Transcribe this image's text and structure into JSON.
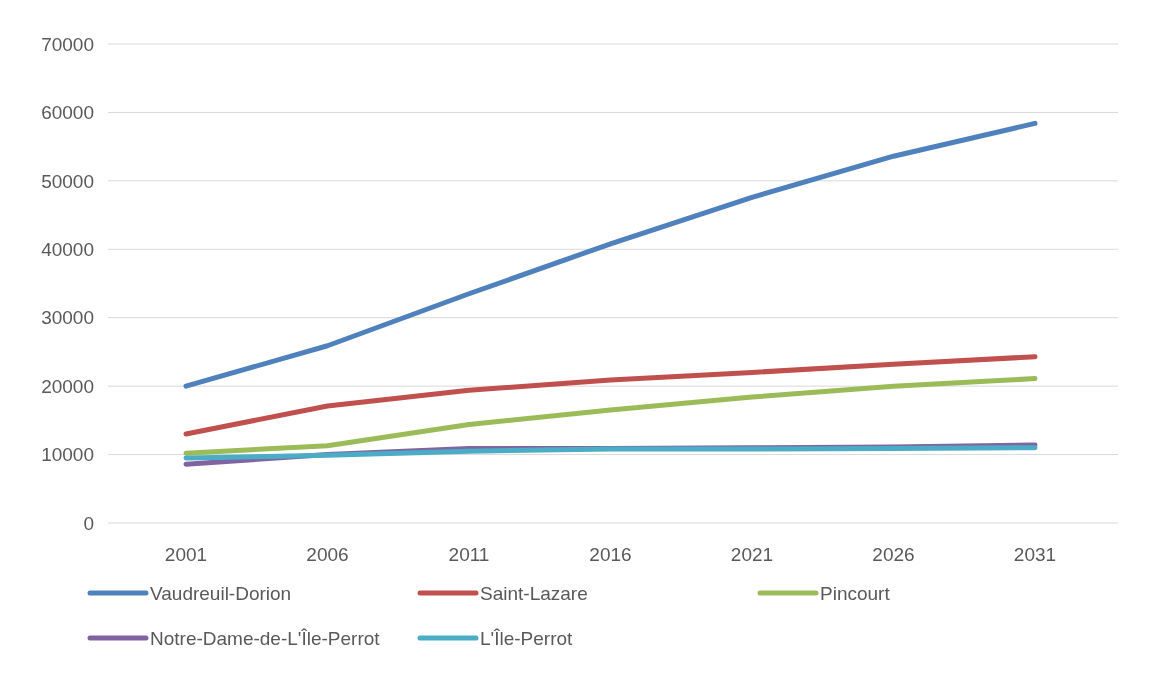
{
  "chart_data": {
    "type": "line",
    "categories": [
      "2001",
      "2006",
      "2011",
      "2016",
      "2021",
      "2026",
      "2031"
    ],
    "series": [
      {
        "name": "Vaudreuil-Dorion",
        "color": "#4f81bd",
        "values": [
          20000,
          25900,
          33500,
          40800,
          47600,
          53600,
          58400
        ]
      },
      {
        "name": "Saint-Lazare",
        "color": "#c0504d",
        "values": [
          13000,
          17100,
          19400,
          20900,
          22000,
          23200,
          24300
        ]
      },
      {
        "name": "Pincourt",
        "color": "#9bbb59",
        "values": [
          10200,
          11300,
          14400,
          16500,
          18400,
          20000,
          21100
        ]
      },
      {
        "name": "Notre-Dame-de-L'Île-Perrot",
        "color": "#8064a2",
        "values": [
          8600,
          10000,
          10900,
          10900,
          11000,
          11100,
          11400
        ]
      },
      {
        "name": "L'Île-Perrot",
        "color": "#4bacc6",
        "values": [
          9500,
          9900,
          10500,
          10800,
          10800,
          10900,
          11000
        ]
      }
    ],
    "ylim": [
      0,
      70000
    ],
    "yticks": [
      0,
      10000,
      20000,
      30000,
      40000,
      50000,
      60000,
      70000
    ],
    "grid": "y",
    "legend": "bottom",
    "marker": "none",
    "line_style": "solid"
  }
}
